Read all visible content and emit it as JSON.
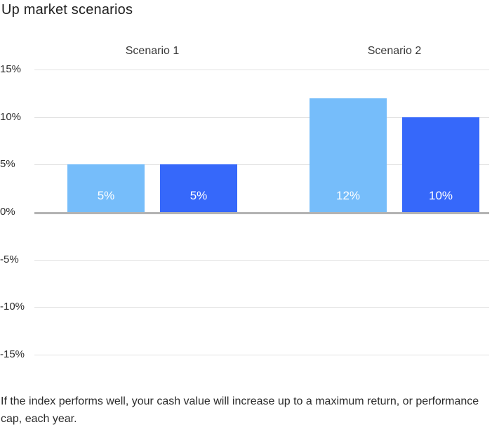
{
  "title": "Up market scenarios",
  "caption": "If the index performs well, your cash value will increase up to a maximum return, or performance cap, each year.",
  "colors": {
    "light_blue": "#76BDFA",
    "dark_blue": "#3668FA",
    "gridline": "#E1E1E1",
    "zero_line": "#B3B3B3",
    "title_text": "#1E1E1E",
    "label_text": "#3A3A3A",
    "bar_label_text": "#FFFFFF"
  },
  "chart_data": {
    "type": "bar",
    "title": "Up market scenarios",
    "groups": [
      {
        "label": "Scenario 1",
        "bars": [
          {
            "value": 5,
            "label": "5%",
            "color_key": "light_blue"
          },
          {
            "value": 5,
            "label": "5%",
            "color_key": "dark_blue"
          }
        ]
      },
      {
        "label": "Scenario 2",
        "bars": [
          {
            "value": 12,
            "label": "12%",
            "color_key": "light_blue"
          },
          {
            "value": 10,
            "label": "10%",
            "color_key": "dark_blue"
          }
        ]
      }
    ],
    "yticks": [
      {
        "value": 15,
        "label": "15%"
      },
      {
        "value": 10,
        "label": "10%"
      },
      {
        "value": 5,
        "label": "5%"
      },
      {
        "value": 0,
        "label": "0%"
      },
      {
        "value": -5,
        "label": "-5%"
      },
      {
        "value": -10,
        "label": "-10%"
      },
      {
        "value": -15,
        "label": "-15%"
      }
    ],
    "ylim": [
      -15,
      15
    ],
    "grid": true,
    "legend": false,
    "xlabel": "",
    "ylabel": ""
  }
}
